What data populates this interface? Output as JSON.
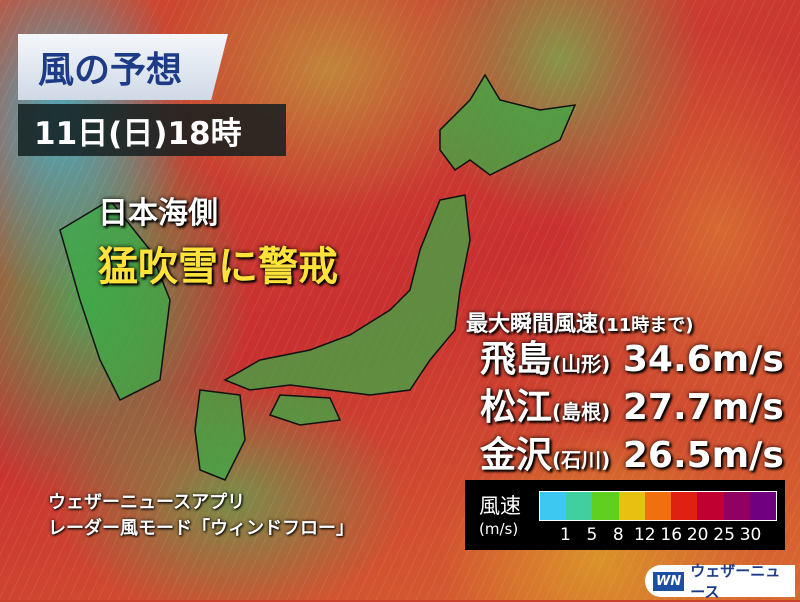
{
  "title": "風の予想",
  "datetime": "11日(日)18時",
  "headline": {
    "region": "日本海側",
    "warning": "猛吹雪に警戒"
  },
  "gusts": {
    "heading": "最大瞬間風速",
    "heading_note": "(11時まで)",
    "rows": [
      {
        "place": "飛島",
        "pref": "(山形)",
        "value": "34.6m/s"
      },
      {
        "place": "松江",
        "pref": "(島根)",
        "value": "27.7m/s"
      },
      {
        "place": "金沢",
        "pref": "(石川)",
        "value": "26.5m/s"
      }
    ]
  },
  "app_text": {
    "line1": "ウェザーニュースアプリ",
    "line2": "レーダー風モード「ウィンドフロー」"
  },
  "legend": {
    "title": "風速",
    "unit": "(m/s)",
    "ticks": [
      "1",
      "5",
      "8",
      "12",
      "16",
      "20",
      "25",
      "30"
    ],
    "colors": [
      "#3cc8f0",
      "#40d0a0",
      "#60d020",
      "#e8c010",
      "#f07010",
      "#e02010",
      "#c00030",
      "#900060",
      "#700080"
    ]
  },
  "logo": {
    "mark": "WN",
    "text": "ウェザーニュース"
  }
}
